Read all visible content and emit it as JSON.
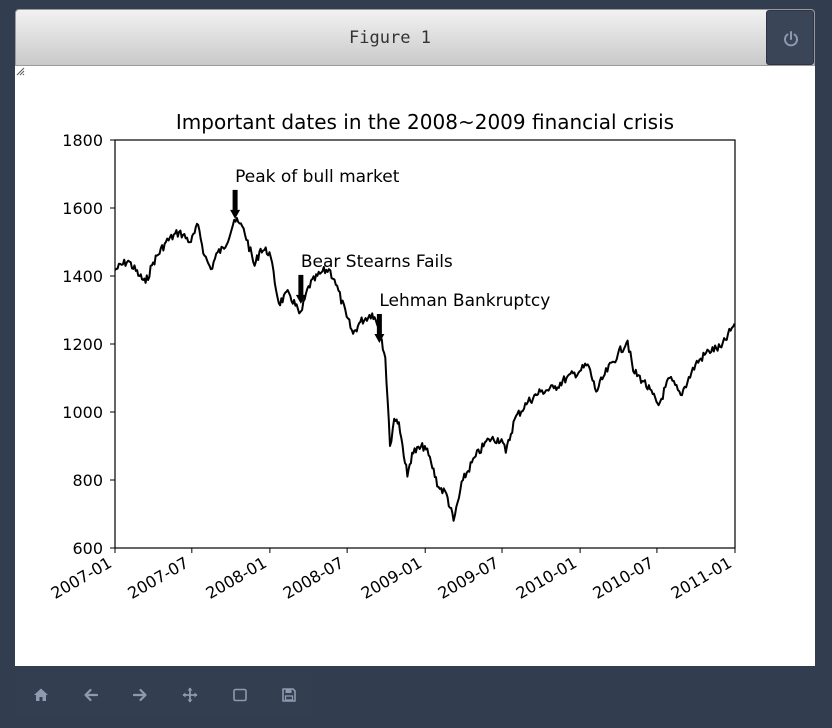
{
  "window": {
    "title": "Figure 1"
  },
  "toolbar": {
    "buttons": [
      {
        "name": "home-icon"
      },
      {
        "name": "back-icon"
      },
      {
        "name": "forward-icon"
      },
      {
        "name": "pan-icon"
      },
      {
        "name": "zoom-rect-icon"
      },
      {
        "name": "save-icon"
      }
    ]
  },
  "colors": {
    "background": "#333d50",
    "icon": "#8d9aaf",
    "line": "#000000"
  },
  "chart_data": {
    "type": "line",
    "title": "Important dates in the 2008~2009 financial crisis",
    "xlabel": "",
    "ylabel": "",
    "xlim": [
      "2007-01-01",
      "2011-01-01"
    ],
    "ylim": [
      600,
      1800
    ],
    "xticks": [
      "2007-01",
      "2007-07",
      "2008-01",
      "2008-07",
      "2009-01",
      "2009-07",
      "2010-01",
      "2010-07",
      "2011-01"
    ],
    "yticks": [
      "600",
      "800",
      "1000",
      "1200",
      "1400",
      "1600",
      "1800"
    ],
    "grid": false,
    "series": [
      {
        "color": "#000000",
        "x": [
          "2007-01-01",
          "2007-02-01",
          "2007-02-28",
          "2007-03-14",
          "2007-04-01",
          "2007-05-01",
          "2007-06-01",
          "2007-06-29",
          "2007-07-16",
          "2007-07-31",
          "2007-08-15",
          "2007-08-31",
          "2007-09-15",
          "2007-10-09",
          "2007-10-31",
          "2007-11-26",
          "2007-12-10",
          "2007-12-31",
          "2008-01-22",
          "2008-02-15",
          "2008-03-10",
          "2008-03-17",
          "2008-04-01",
          "2008-05-01",
          "2008-05-19",
          "2008-06-01",
          "2008-06-30",
          "2008-07-15",
          "2008-08-01",
          "2008-08-29",
          "2008-09-15",
          "2008-09-29",
          "2008-10-10",
          "2008-10-20",
          "2008-10-31",
          "2008-11-20",
          "2008-12-01",
          "2008-12-31",
          "2009-01-15",
          "2009-02-01",
          "2009-02-20",
          "2009-03-09",
          "2009-03-31",
          "2009-04-30",
          "2009-05-31",
          "2009-06-30",
          "2009-07-10",
          "2009-07-31",
          "2009-08-31",
          "2009-09-30",
          "2009-10-31",
          "2009-11-30",
          "2009-12-31",
          "2010-01-19",
          "2010-02-08",
          "2010-02-28",
          "2010-03-31",
          "2010-04-23",
          "2010-05-06",
          "2010-05-31",
          "2010-06-30",
          "2010-07-05",
          "2010-07-31",
          "2010-08-26",
          "2010-09-30",
          "2010-10-31",
          "2010-11-30",
          "2010-12-31"
        ],
        "values": [
          1418,
          1445,
          1400,
          1380,
          1440,
          1500,
          1530,
          1500,
          1550,
          1460,
          1420,
          1470,
          1480,
          1565,
          1540,
          1430,
          1480,
          1470,
          1320,
          1350,
          1290,
          1300,
          1370,
          1410,
          1420,
          1390,
          1280,
          1230,
          1265,
          1290,
          1250,
          1160,
          900,
          980,
          970,
          810,
          880,
          900,
          850,
          780,
          760,
          680,
          800,
          870,
          920,
          920,
          880,
          980,
          1030,
          1060,
          1070,
          1100,
          1120,
          1140,
          1060,
          1110,
          1170,
          1210,
          1120,
          1090,
          1030,
          1020,
          1100,
          1050,
          1140,
          1180,
          1190,
          1260
        ]
      }
    ],
    "annotations": [
      {
        "text": "Peak of bull market",
        "x": "2007-10-11",
        "y": 1565
      },
      {
        "text": "Bear Stearns Fails",
        "x": "2008-03-14",
        "y": 1315
      },
      {
        "text": "Lehman Bankruptcy",
        "x": "2008-09-15",
        "y": 1200
      }
    ]
  }
}
